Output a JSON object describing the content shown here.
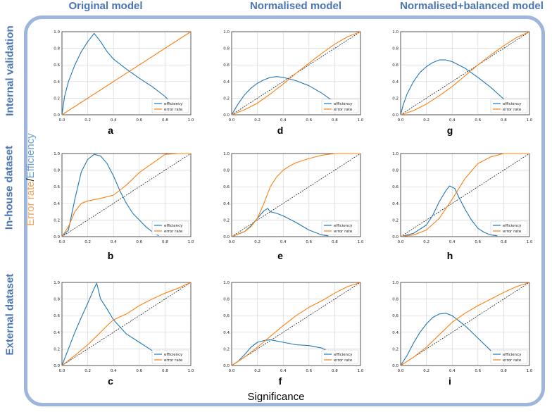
{
  "column_titles": [
    "Original model",
    "Normalised model",
    "Normalised+balanced model"
  ],
  "row_titles": [
    "Internal validation",
    "In-house dataset",
    "External dataset"
  ],
  "y_label": {
    "error": "Error rate",
    "slash": "/",
    "efficiency": "Efficiency"
  },
  "x_label": "Significance",
  "colors": {
    "efficiency": "#1f77b4",
    "error": "#ff7f0e",
    "diagonal": "#000000",
    "frame": "#9fb6dc",
    "titles": "#4a76b4"
  },
  "chart_data": [
    {
      "panel": "a",
      "type": "line",
      "xlim": [
        0,
        1
      ],
      "ylim": [
        0,
        1
      ],
      "grid": true,
      "legend_position": "bottom-right",
      "x_ticks": [
        "0.0",
        "0.2",
        "0.4",
        "0.6",
        "0.8",
        "1.0"
      ],
      "y_ticks": [
        "0.0",
        "0.2",
        "0.4",
        "0.6",
        "0.8",
        "1.0"
      ],
      "series": [
        {
          "name": "efficiency",
          "x": [
            0,
            0.02,
            0.05,
            0.1,
            0.15,
            0.2,
            0.25,
            0.3,
            0.35,
            0.4,
            0.5,
            0.6,
            0.7,
            0.8,
            0.86
          ],
          "y": [
            0,
            0.22,
            0.4,
            0.6,
            0.76,
            0.88,
            0.98,
            0.88,
            0.76,
            0.67,
            0.55,
            0.44,
            0.34,
            0.22,
            0.12
          ]
        },
        {
          "name": "error rate",
          "x": [
            0,
            0.2,
            0.4,
            0.6,
            0.8,
            1.0
          ],
          "y": [
            0,
            0.2,
            0.4,
            0.6,
            0.8,
            1.0
          ]
        }
      ]
    },
    {
      "panel": "b",
      "type": "line",
      "xlim": [
        0,
        1
      ],
      "ylim": [
        0,
        1
      ],
      "grid": true,
      "legend_position": "bottom-right",
      "x_ticks": [
        "0.0",
        "0.2",
        "0.4",
        "0.6",
        "0.8",
        "1.0"
      ],
      "y_ticks": [
        "0.0",
        "0.2",
        "0.4",
        "0.6",
        "0.8",
        "1.0"
      ],
      "series": [
        {
          "name": "efficiency",
          "x": [
            0,
            0.05,
            0.1,
            0.15,
            0.2,
            0.25,
            0.3,
            0.35,
            0.4,
            0.45,
            0.5,
            0.55,
            0.6,
            0.65,
            0.7,
            0.75
          ],
          "y": [
            0,
            0.08,
            0.45,
            0.78,
            0.93,
            0.99,
            0.97,
            0.88,
            0.73,
            0.55,
            0.4,
            0.28,
            0.2,
            0.12,
            0.06,
            0.01
          ]
        },
        {
          "name": "error rate",
          "x": [
            0,
            0.05,
            0.1,
            0.15,
            0.2,
            0.3,
            0.4,
            0.5,
            0.6,
            0.7,
            0.8,
            0.9,
            1.0
          ],
          "y": [
            0,
            0.12,
            0.3,
            0.4,
            0.43,
            0.46,
            0.5,
            0.62,
            0.77,
            0.88,
            0.99,
            1.0,
            1.0
          ]
        }
      ]
    },
    {
      "panel": "c",
      "type": "line",
      "xlim": [
        0,
        1
      ],
      "ylim": [
        0,
        1
      ],
      "grid": true,
      "legend_position": "bottom-right",
      "x_ticks": [
        "0.0",
        "0.2",
        "0.4",
        "0.6",
        "0.8",
        "1.0"
      ],
      "y_ticks": [
        "0.0",
        "0.2",
        "0.4",
        "0.6",
        "0.8",
        "1.0"
      ],
      "series": [
        {
          "name": "efficiency",
          "x": [
            0,
            0.05,
            0.1,
            0.15,
            0.2,
            0.25,
            0.27,
            0.3,
            0.35,
            0.4,
            0.5,
            0.6,
            0.7,
            0.78
          ],
          "y": [
            0,
            0.2,
            0.4,
            0.58,
            0.75,
            0.93,
            0.99,
            0.8,
            0.68,
            0.55,
            0.38,
            0.28,
            0.18,
            0.12
          ]
        },
        {
          "name": "error rate",
          "x": [
            0,
            0.1,
            0.2,
            0.3,
            0.35,
            0.4,
            0.5,
            0.6,
            0.7,
            0.8,
            0.9,
            1.0
          ],
          "y": [
            0,
            0.12,
            0.25,
            0.4,
            0.48,
            0.55,
            0.62,
            0.72,
            0.8,
            0.87,
            0.93,
            1.0
          ]
        }
      ]
    },
    {
      "panel": "d",
      "type": "line",
      "xlim": [
        0,
        1
      ],
      "ylim": [
        0,
        1
      ],
      "grid": true,
      "legend_position": "bottom-right",
      "x_ticks": [
        "0.0",
        "0.2",
        "0.4",
        "0.6",
        "0.8",
        "1.0"
      ],
      "y_ticks": [
        "0.0",
        "0.2",
        "0.4",
        "0.6",
        "0.8",
        "1.0"
      ],
      "series": [
        {
          "name": "efficiency",
          "x": [
            0,
            0.05,
            0.1,
            0.15,
            0.2,
            0.25,
            0.3,
            0.35,
            0.4,
            0.5,
            0.6,
            0.7,
            0.8,
            0.84
          ],
          "y": [
            0,
            0.13,
            0.24,
            0.32,
            0.38,
            0.42,
            0.45,
            0.46,
            0.45,
            0.41,
            0.35,
            0.26,
            0.15,
            0.1
          ]
        },
        {
          "name": "error rate",
          "x": [
            0,
            0.1,
            0.2,
            0.3,
            0.4,
            0.5,
            0.6,
            0.7,
            0.8,
            0.9,
            1.0
          ],
          "y": [
            0,
            0.06,
            0.14,
            0.25,
            0.37,
            0.5,
            0.62,
            0.74,
            0.85,
            0.94,
            1.0
          ]
        }
      ]
    },
    {
      "panel": "e",
      "type": "line",
      "xlim": [
        0,
        1
      ],
      "ylim": [
        0,
        1
      ],
      "grid": true,
      "legend_position": "bottom-right",
      "x_ticks": [
        "0.0",
        "0.2",
        "0.4",
        "0.6",
        "0.8",
        "1.0"
      ],
      "y_ticks": [
        "0.0",
        "0.2",
        "0.4",
        "0.6",
        "0.8",
        "1.0"
      ],
      "series": [
        {
          "name": "efficiency",
          "x": [
            0,
            0.1,
            0.15,
            0.2,
            0.25,
            0.28,
            0.3,
            0.35,
            0.4,
            0.5,
            0.6,
            0.7,
            0.75
          ],
          "y": [
            0,
            0.06,
            0.13,
            0.22,
            0.31,
            0.34,
            0.3,
            0.28,
            0.25,
            0.17,
            0.08,
            0.02,
            0.01
          ]
        },
        {
          "name": "error rate",
          "x": [
            0,
            0.1,
            0.15,
            0.2,
            0.25,
            0.3,
            0.35,
            0.4,
            0.45,
            0.5,
            0.6,
            0.7,
            0.8,
            0.9,
            1.0
          ],
          "y": [
            0,
            0.06,
            0.12,
            0.22,
            0.4,
            0.6,
            0.72,
            0.8,
            0.85,
            0.89,
            0.94,
            0.98,
            1.0,
            1.0,
            1.0
          ]
        }
      ]
    },
    {
      "panel": "f",
      "type": "line",
      "xlim": [
        0,
        1
      ],
      "ylim": [
        0,
        1
      ],
      "grid": true,
      "legend_position": "bottom-right",
      "x_ticks": [
        "0.0",
        "0.2",
        "0.4",
        "0.6",
        "0.8",
        "1.0"
      ],
      "y_ticks": [
        "0.0",
        "0.2",
        "0.4",
        "0.6",
        "0.8",
        "1.0"
      ],
      "series": [
        {
          "name": "efficiency",
          "x": [
            0,
            0.05,
            0.1,
            0.15,
            0.2,
            0.25,
            0.3,
            0.4,
            0.5,
            0.6,
            0.7,
            0.75
          ],
          "y": [
            0,
            0.05,
            0.13,
            0.22,
            0.28,
            0.3,
            0.31,
            0.28,
            0.25,
            0.24,
            0.21,
            0.17
          ]
        },
        {
          "name": "error rate",
          "x": [
            0,
            0.1,
            0.2,
            0.3,
            0.4,
            0.5,
            0.6,
            0.7,
            0.8,
            0.9,
            1.0
          ],
          "y": [
            0,
            0.1,
            0.22,
            0.35,
            0.48,
            0.6,
            0.7,
            0.78,
            0.87,
            0.95,
            1.0
          ]
        }
      ]
    },
    {
      "panel": "g",
      "type": "line",
      "xlim": [
        0,
        1
      ],
      "ylim": [
        0,
        1
      ],
      "grid": true,
      "legend_position": "bottom-right",
      "x_ticks": [
        "0.0",
        "0.2",
        "0.4",
        "0.6",
        "0.8",
        "1.0"
      ],
      "y_ticks": [
        "0.0",
        "0.2",
        "0.4",
        "0.6",
        "0.8",
        "1.0"
      ],
      "series": [
        {
          "name": "efficiency",
          "x": [
            0,
            0.02,
            0.05,
            0.1,
            0.15,
            0.2,
            0.25,
            0.3,
            0.35,
            0.4,
            0.5,
            0.6,
            0.7,
            0.8,
            0.84
          ],
          "y": [
            0,
            0.12,
            0.25,
            0.4,
            0.51,
            0.58,
            0.63,
            0.66,
            0.66,
            0.64,
            0.56,
            0.45,
            0.33,
            0.19,
            0.12
          ]
        },
        {
          "name": "error rate",
          "x": [
            0,
            0.1,
            0.2,
            0.3,
            0.4,
            0.5,
            0.6,
            0.7,
            0.8,
            0.9,
            1.0
          ],
          "y": [
            0,
            0.05,
            0.13,
            0.23,
            0.34,
            0.47,
            0.6,
            0.72,
            0.83,
            0.93,
            1.0
          ]
        }
      ]
    },
    {
      "panel": "h",
      "type": "line",
      "xlim": [
        0,
        1
      ],
      "ylim": [
        0,
        1
      ],
      "grid": true,
      "legend_position": "bottom-right",
      "x_ticks": [
        "0.0",
        "0.2",
        "0.4",
        "0.6",
        "0.8",
        "1.0"
      ],
      "y_ticks": [
        "0.0",
        "0.2",
        "0.4",
        "0.6",
        "0.8",
        "1.0"
      ],
      "series": [
        {
          "name": "efficiency",
          "x": [
            0,
            0.1,
            0.2,
            0.25,
            0.3,
            0.35,
            0.38,
            0.42,
            0.45,
            0.5,
            0.55,
            0.6,
            0.65,
            0.7,
            0.75
          ],
          "y": [
            0,
            0.04,
            0.14,
            0.26,
            0.42,
            0.55,
            0.61,
            0.58,
            0.48,
            0.33,
            0.2,
            0.1,
            0.05,
            0.02,
            0.01
          ]
        },
        {
          "name": "error rate",
          "x": [
            0,
            0.1,
            0.2,
            0.3,
            0.4,
            0.5,
            0.6,
            0.7,
            0.8,
            0.9,
            1.0
          ],
          "y": [
            0,
            0.02,
            0.08,
            0.22,
            0.45,
            0.7,
            0.88,
            0.96,
            1.0,
            1.0,
            1.0
          ]
        }
      ]
    },
    {
      "panel": "i",
      "type": "line",
      "xlim": [
        0,
        1
      ],
      "ylim": [
        0,
        1
      ],
      "grid": true,
      "legend_position": "bottom-right",
      "x_ticks": [
        "0.0",
        "0.2",
        "0.4",
        "0.6",
        "0.8",
        "1.0"
      ],
      "y_ticks": [
        "0.0",
        "0.2",
        "0.4",
        "0.6",
        "0.8",
        "1.0"
      ],
      "series": [
        {
          "name": "efficiency",
          "x": [
            0,
            0.05,
            0.1,
            0.15,
            0.2,
            0.25,
            0.3,
            0.35,
            0.4,
            0.5,
            0.6,
            0.7,
            0.75
          ],
          "y": [
            0,
            0.12,
            0.27,
            0.4,
            0.5,
            0.58,
            0.62,
            0.63,
            0.6,
            0.48,
            0.33,
            0.18,
            0.12
          ]
        },
        {
          "name": "error rate",
          "x": [
            0,
            0.1,
            0.2,
            0.3,
            0.4,
            0.5,
            0.6,
            0.7,
            0.8,
            0.9,
            1.0
          ],
          "y": [
            0,
            0.1,
            0.22,
            0.37,
            0.52,
            0.63,
            0.72,
            0.8,
            0.88,
            0.95,
            1.0
          ]
        }
      ]
    }
  ]
}
